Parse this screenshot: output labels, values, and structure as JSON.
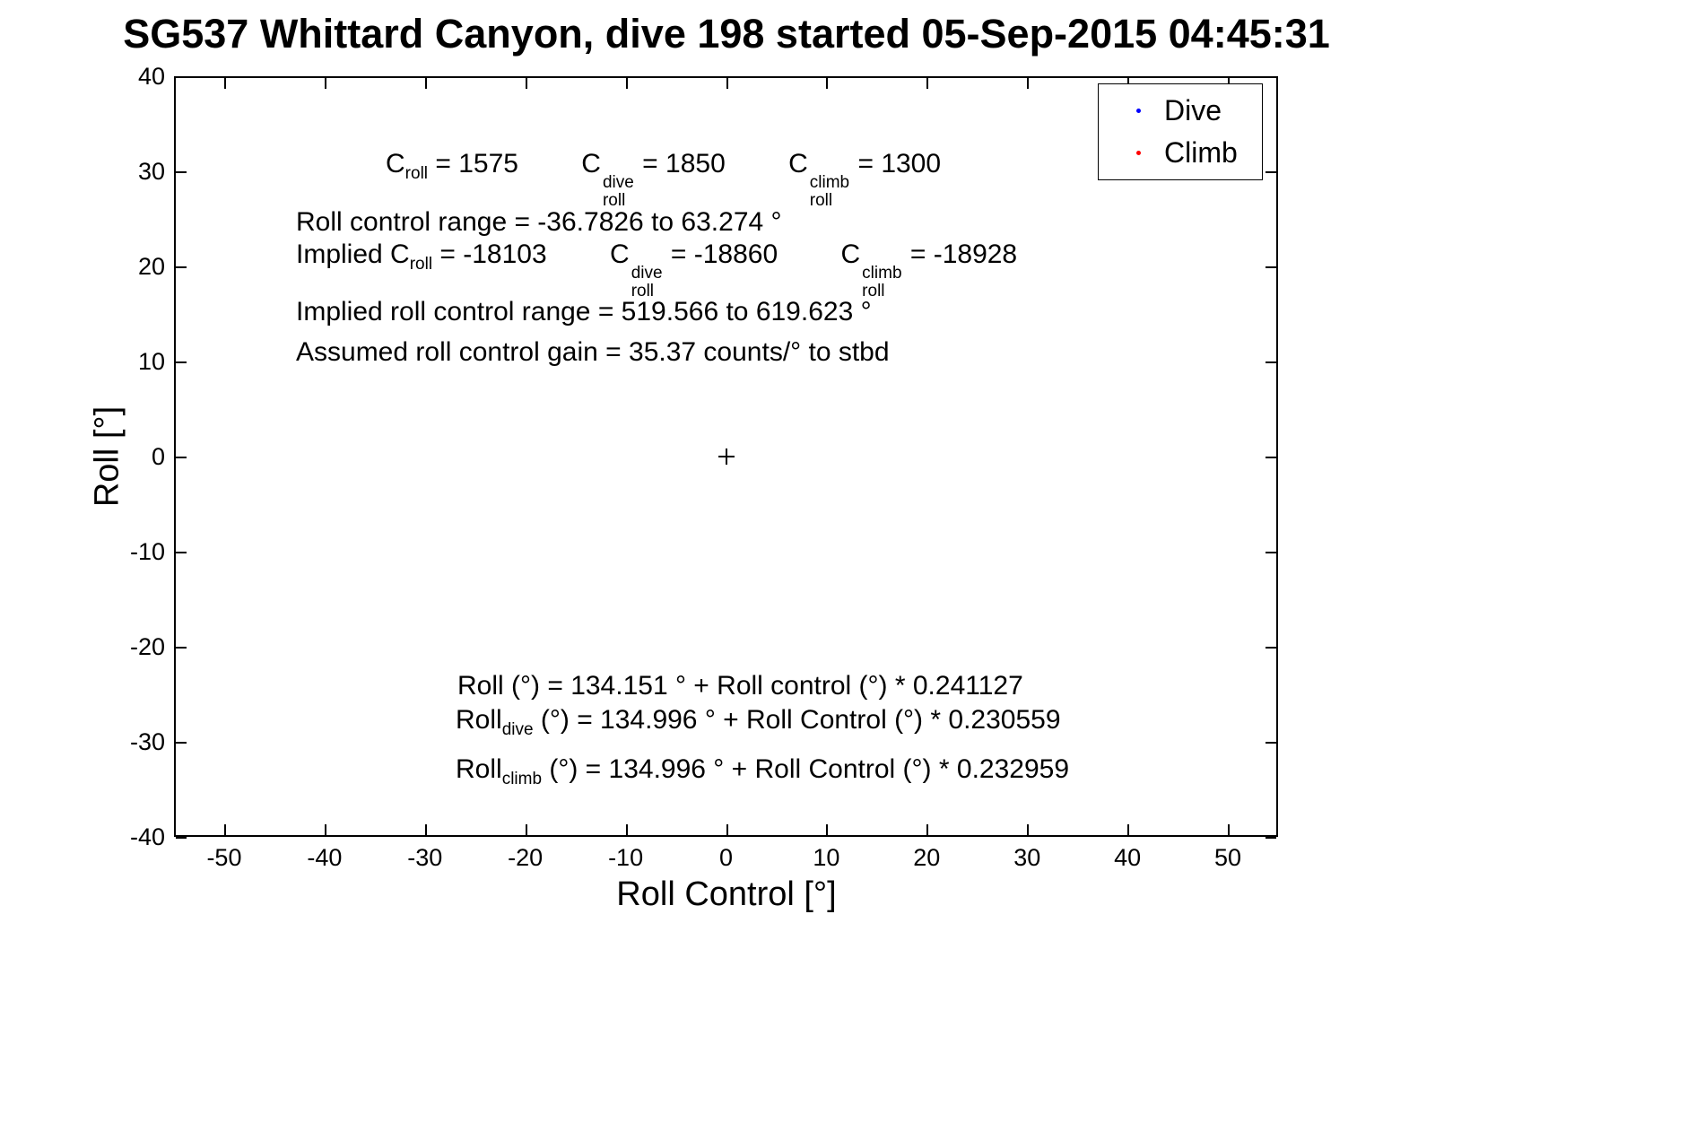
{
  "chart_data": {
    "type": "scatter",
    "title": "SG537 Whittard Canyon, dive 198 started 05-Sep-2015 04:45:31",
    "xlabel": "Roll Control [°]",
    "ylabel": "Roll [°]",
    "xlim": [
      -55,
      55
    ],
    "ylim": [
      -40,
      40
    ],
    "x_ticks": [
      "-50",
      "-40",
      "-30",
      "-20",
      "-10",
      "0",
      "10",
      "20",
      "30",
      "40",
      "50"
    ],
    "y_ticks": [
      "40",
      "30",
      "20",
      "10",
      "0",
      "-10",
      "-20",
      "-30",
      "-40"
    ],
    "grid": false,
    "legend_position": "top-right",
    "series": [
      {
        "name": "Dive",
        "color": "#0000ff",
        "marker": "point",
        "x": [],
        "y": []
      },
      {
        "name": "Climb",
        "color": "#ff0000",
        "marker": "point",
        "x": [],
        "y": []
      }
    ],
    "origin_marker": {
      "symbol": "+",
      "x": 0,
      "y": 0
    },
    "annotations_text": [
      "C_roll = 1575    C_roll^dive = 1850    C_roll^climb = 1300",
      "Roll control range = -36.7826 to 63.274 °",
      "Implied C_roll = -18103    C_roll^dive = -18860    C_roll^climb = -18928",
      "Implied roll control range = 519.566 to 619.623 °",
      "Assumed roll control gain = 35.37 counts/° to stbd",
      "Roll (°) = 134.151 ° + Roll control (°) * 0.241127",
      "Roll_dive (°) = 134.996 ° + Roll Control (°) * 0.230559",
      "Roll_climb (°) = 134.996 ° + Roll Control (°) * 0.232959"
    ]
  },
  "legend": {
    "items": [
      {
        "label": "Dive",
        "color": "#0000ff"
      },
      {
        "label": "Climb",
        "color": "#ff0000"
      }
    ]
  },
  "ann": {
    "coeffs": {
      "t1_base": "C",
      "t1_sub": "roll",
      "t1_eq": " = 1575",
      "t2_base": "C",
      "t2_sup": "dive",
      "t2_sub": "roll",
      "t2_eq": " = 1850",
      "t3_base": "C",
      "t3_sup": "climb",
      "t3_sub": "roll",
      "t3_eq": " = 1300"
    },
    "roll_range": "Roll control range = -36.7826 to 63.274 °",
    "implied": {
      "prefix": "Implied C",
      "p_sub": "roll",
      "p_eq": " = -18103",
      "t2_base": "C",
      "t2_sup": "dive",
      "t2_sub": "roll",
      "t2_eq": " = -18860",
      "t3_base": "C",
      "t3_sup": "climb",
      "t3_sub": "roll",
      "t3_eq": " = -18928"
    },
    "implied_range": "Implied roll control range = 519.566 to 619.623 °",
    "gain": "Assumed roll control gain = 35.37 counts/° to stbd",
    "fit_all": {
      "base": "Roll",
      "rest": " (°) = 134.151 ° + Roll control (°) * 0.241127"
    },
    "fit_dive": {
      "base": "Roll",
      "sub": "dive",
      "rest": " (°) = 134.996 ° + Roll Control (°) * 0.230559"
    },
    "fit_climb": {
      "base": "Roll",
      "sub": "climb",
      "rest": " (°) = 134.996 ° + Roll Control (°) * 0.232959"
    }
  }
}
